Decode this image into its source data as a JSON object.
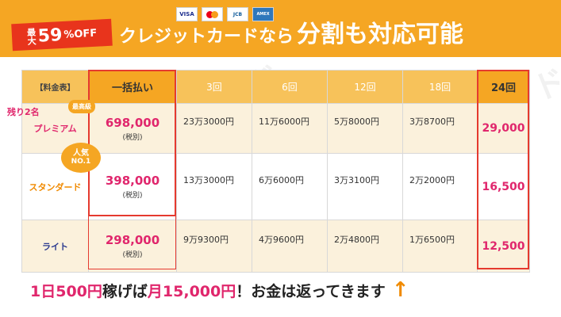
{
  "banner": {
    "discount_prefix": "最大",
    "discount_value": "59",
    "discount_suffix": "%OFF",
    "headline_small": "クレジットカードなら",
    "headline_big": "分割も対応可能",
    "cards": [
      "VISA",
      "MasterCard",
      "JCB",
      "AMERICAN EXPRESS"
    ]
  },
  "watermark": "副業必勝ガイド",
  "badges": {
    "remaining": "残り2名",
    "top_grade": "最高級",
    "popular_line1": "人気",
    "popular_line2": "NO.1"
  },
  "table": {
    "headers": [
      "【料金表】",
      "一括払い",
      "3回",
      "6回",
      "12回",
      "18回",
      "24回"
    ],
    "rows": [
      {
        "name": "プレミアム",
        "price": "698,000",
        "tax": "(税別)",
        "inst": [
          "23万3000円",
          "11万6000円",
          "5万8000円",
          "3万8700円"
        ],
        "m24": "29,000"
      },
      {
        "name": "スタンダード",
        "price": "398,000",
        "tax": "(税別)",
        "inst": [
          "13万3000円",
          "6万6000円",
          "3万3100円",
          "2万2000円"
        ],
        "m24": "16,500"
      },
      {
        "name": "ライト",
        "price": "298,000",
        "tax": "(税別)",
        "inst": [
          "9万9300円",
          "4万9600円",
          "2万4800円",
          "1万6500円"
        ],
        "m24": "12,500"
      }
    ]
  },
  "footer": {
    "part1": "1日500円",
    "part2": "稼げば",
    "part3": "月15,000円",
    "part4": "！お金は返ってきます",
    "arrow": "↑"
  },
  "colors": {
    "banner": "#f5a623",
    "accent_red": "#e8341c",
    "price_pink": "#e0266c"
  }
}
